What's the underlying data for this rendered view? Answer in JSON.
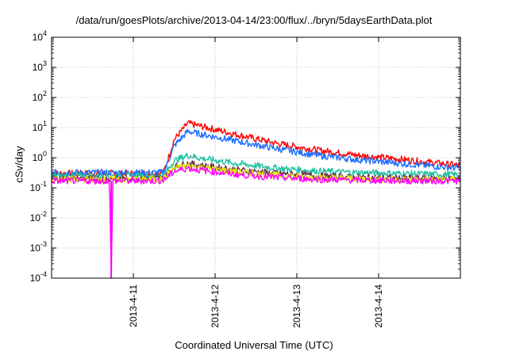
{
  "chart_data": {
    "type": "line",
    "title": "/data/run/goesPlots/archive/2013-04-14/23:00/flux/../bryn/5daysEarthData.plot",
    "xlabel": "Coordinated Universal Time (UTC)",
    "ylabel": "cSv/day",
    "yscale": "log",
    "ylim": [
      0.0001,
      10000
    ],
    "y_ticks": [
      {
        "value": 0.0001,
        "base": "10",
        "exp": "-4"
      },
      {
        "value": 0.001,
        "base": "10",
        "exp": "-3"
      },
      {
        "value": 0.01,
        "base": "10",
        "exp": "-2"
      },
      {
        "value": 0.1,
        "base": "10",
        "exp": "-1"
      },
      {
        "value": 1,
        "base": "10",
        "exp": "0"
      },
      {
        "value": 10,
        "base": "10",
        "exp": "1"
      },
      {
        "value": 100,
        "base": "10",
        "exp": "2"
      },
      {
        "value": 1000,
        "base": "10",
        "exp": "3"
      },
      {
        "value": 10000,
        "base": "10",
        "exp": "4"
      }
    ],
    "xlim": [
      "2013-04-10T00:00",
      "2013-04-15T00:00"
    ],
    "x_ticks": [
      "2013-4-11",
      "2013-4-12",
      "2013-4-13",
      "2013-4-14"
    ],
    "grid": true,
    "series": [
      {
        "color": "#ff0000",
        "points": [
          [
            "2013-04-10T00:00",
            0.3
          ],
          [
            "2013-04-11T07:00",
            0.3
          ],
          [
            "2013-04-11T09:00",
            0.35
          ],
          [
            "2013-04-11T12:00",
            4.0
          ],
          [
            "2013-04-11T16:00",
            14
          ],
          [
            "2013-04-11T20:00",
            11
          ],
          [
            "2013-04-12T06:00",
            6
          ],
          [
            "2013-04-12T18:00",
            3
          ],
          [
            "2013-04-13T06:00",
            1.8
          ],
          [
            "2013-04-13T18:00",
            1.2
          ],
          [
            "2013-04-14T06:00",
            0.9
          ],
          [
            "2013-04-14T18:00",
            0.65
          ],
          [
            "2013-04-15T00:00",
            0.55
          ]
        ]
      },
      {
        "color": "#1f6fff",
        "points": [
          [
            "2013-04-10T00:00",
            0.32
          ],
          [
            "2013-04-11T07:00",
            0.32
          ],
          [
            "2013-04-11T09:00",
            0.33
          ],
          [
            "2013-04-11T12:00",
            2.5
          ],
          [
            "2013-04-11T16:00",
            7.5
          ],
          [
            "2013-04-11T20:00",
            6
          ],
          [
            "2013-04-12T06:00",
            3.6
          ],
          [
            "2013-04-12T18:00",
            2
          ],
          [
            "2013-04-13T06:00",
            1.2
          ],
          [
            "2013-04-13T18:00",
            0.85
          ],
          [
            "2013-04-14T06:00",
            0.65
          ],
          [
            "2013-04-14T18:00",
            0.5
          ],
          [
            "2013-04-15T00:00",
            0.45
          ]
        ]
      },
      {
        "color": "#20c0a0",
        "points": [
          [
            "2013-04-10T00:00",
            0.25
          ],
          [
            "2013-04-11T07:00",
            0.25
          ],
          [
            "2013-04-11T09:00",
            0.27
          ],
          [
            "2013-04-11T12:00",
            0.8
          ],
          [
            "2013-04-11T16:00",
            1.2
          ],
          [
            "2013-04-11T20:00",
            0.95
          ],
          [
            "2013-04-12T06:00",
            0.65
          ],
          [
            "2013-04-12T18:00",
            0.45
          ],
          [
            "2013-04-13T06:00",
            0.36
          ],
          [
            "2013-04-13T18:00",
            0.32
          ],
          [
            "2013-04-14T06:00",
            0.3
          ],
          [
            "2013-04-14T18:00",
            0.28
          ],
          [
            "2013-04-15T00:00",
            0.27
          ]
        ]
      },
      {
        "color": "#6a2f4f",
        "points": [
          [
            "2013-04-10T00:00",
            0.2
          ],
          [
            "2013-04-11T07:00",
            0.2
          ],
          [
            "2013-04-11T09:00",
            0.21
          ],
          [
            "2013-04-11T12:00",
            0.5
          ],
          [
            "2013-04-11T16:00",
            0.65
          ],
          [
            "2013-04-11T20:00",
            0.55
          ],
          [
            "2013-04-12T06:00",
            0.4
          ],
          [
            "2013-04-12T18:00",
            0.3
          ],
          [
            "2013-04-13T06:00",
            0.25
          ],
          [
            "2013-04-13T18:00",
            0.22
          ],
          [
            "2013-04-14T06:00",
            0.21
          ],
          [
            "2013-04-14T18:00",
            0.2
          ],
          [
            "2013-04-15T00:00",
            0.2
          ]
        ]
      },
      {
        "color": "#e8e800",
        "points": [
          [
            "2013-04-10T00:00",
            0.19
          ],
          [
            "2013-04-11T07:00",
            0.19
          ],
          [
            "2013-04-11T09:00",
            0.2
          ],
          [
            "2013-04-11T12:00",
            0.45
          ],
          [
            "2013-04-11T16:00",
            0.55
          ],
          [
            "2013-04-11T20:00",
            0.48
          ],
          [
            "2013-04-12T06:00",
            0.34
          ],
          [
            "2013-04-12T18:00",
            0.26
          ],
          [
            "2013-04-13T06:00",
            0.22
          ],
          [
            "2013-04-13T18:00",
            0.2
          ],
          [
            "2013-04-14T06:00",
            0.19
          ],
          [
            "2013-04-14T18:00",
            0.19
          ],
          [
            "2013-04-15T00:00",
            0.19
          ]
        ]
      },
      {
        "color": "#ff00ff",
        "points": [
          [
            "2013-04-10T00:00",
            0.17
          ],
          [
            "2013-04-10T17:00",
            0.17
          ],
          [
            "2013-04-10T17:30",
            0.0001
          ],
          [
            "2013-04-10T18:00",
            0.17
          ],
          [
            "2013-04-11T07:00",
            0.17
          ],
          [
            "2013-04-11T09:00",
            0.18
          ],
          [
            "2013-04-11T12:00",
            0.35
          ],
          [
            "2013-04-11T16:00",
            0.45
          ],
          [
            "2013-04-11T20:00",
            0.38
          ],
          [
            "2013-04-12T06:00",
            0.28
          ],
          [
            "2013-04-12T18:00",
            0.22
          ],
          [
            "2013-04-13T06:00",
            0.19
          ],
          [
            "2013-04-13T18:00",
            0.18
          ],
          [
            "2013-04-14T06:00",
            0.17
          ],
          [
            "2013-04-14T18:00",
            0.17
          ],
          [
            "2013-04-15T00:00",
            0.17
          ]
        ]
      }
    ]
  }
}
